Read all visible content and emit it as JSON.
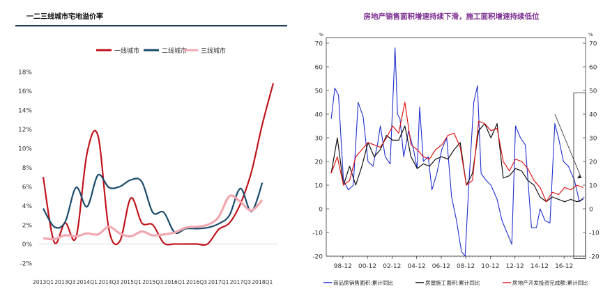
{
  "left_title": "一二三线城市宅地溢价率",
  "right_title": "房地产销售面积增速持续下滑，施工面积增速持续低位",
  "right_percent_left": "%",
  "right_percent_right": "%",
  "colors": {
    "tier1": "#c0141c",
    "tier2": "#1b4b6b",
    "tier3": "#f0a8b0",
    "sales": "#1f2fd0",
    "construction": "#111111",
    "investment": "#e01818",
    "left_rule": "#1f3a5a",
    "right_title": "#7a2d8e"
  },
  "chart_data": [
    {
      "type": "line",
      "title": "一二三线城市宅地溢价率",
      "legend_position": "top-center",
      "x": [
        "2013Q1",
        "2013Q2",
        "2013Q3",
        "2013Q4",
        "2014Q1",
        "2014Q2",
        "2014Q3",
        "2014Q4",
        "2015Q1",
        "2015Q2",
        "2015Q3",
        "2015Q4",
        "2016Q1",
        "2016Q2",
        "2016Q3",
        "2016Q4",
        "2017Q1",
        "2017Q2",
        "2017Q3",
        "2017Q4",
        "2018Q1",
        "2018Q2"
      ],
      "x_tick_labels": [
        "2013Q1",
        "2013Q3",
        "2014Q1",
        "2014Q3",
        "2015Q1",
        "2015Q3",
        "2016Q1",
        "2016Q3",
        "2017Q1",
        "2017Q3",
        "2018Q1"
      ],
      "ylim": [
        -2,
        18
      ],
      "y_ticks": [
        "-2%",
        "0%",
        "2%",
        "4%",
        "6%",
        "8%",
        "10%",
        "12%",
        "14%",
        "16%",
        "18%"
      ],
      "grid": false,
      "series": [
        {
          "name": "一线城市",
          "values": [
            7.0,
            0.2,
            2.2,
            0.7,
            9.5,
            11.3,
            1.5,
            0.3,
            4.8,
            2.2,
            2.0,
            0.1,
            0.0,
            0.0,
            0.0,
            0.0,
            1.5,
            2.2,
            4.2,
            7.5,
            12.5,
            16.8
          ]
        },
        {
          "name": "二线城市",
          "values": [
            3.7,
            1.8,
            2.3,
            5.9,
            3.9,
            7.2,
            5.9,
            6.0,
            6.7,
            6.5,
            3.3,
            3.3,
            1.2,
            1.6,
            1.6,
            1.7,
            2.1,
            3.0,
            5.8,
            3.4,
            6.4,
            null
          ]
        },
        {
          "name": "三线城市",
          "values": [
            0.6,
            0.5,
            0.9,
            0.8,
            1.1,
            1.0,
            1.8,
            1.1,
            0.8,
            1.3,
            0.9,
            1.0,
            1.2,
            1.7,
            1.8,
            2.0,
            2.8,
            5.0,
            4.4,
            3.5,
            4.6,
            null
          ]
        }
      ]
    },
    {
      "type": "line",
      "title": "房地产销售面积增速持续下滑，施工面积增速持续低位",
      "legend_position": "bottom",
      "x_tick_labels": [
        "98-12",
        "00-12",
        "02-12",
        "04-12",
        "06-12",
        "08-12",
        "10-12",
        "12-12",
        "14-12",
        "16-12"
      ],
      "ylim": [
        -20,
        70
      ],
      "y_ticks": [
        -20,
        -10,
        0,
        10,
        20,
        30,
        40,
        50,
        60,
        70
      ],
      "grid": false,
      "series": [
        {
          "name": "商品房销售面积:累计同比",
          "x": [
            1998.0,
            1998.3,
            1998.6,
            1999.0,
            1999.4,
            1999.8,
            2000.2,
            2000.6,
            2001.0,
            2001.4,
            2001.8,
            2002.0,
            2002.4,
            2002.8,
            2003.2,
            2003.4,
            2003.6,
            2003.9,
            2004.3,
            2004.7,
            2005.0,
            2005.2,
            2005.5,
            2005.9,
            2006.2,
            2006.6,
            2007.0,
            2007.4,
            2007.8,
            2008.2,
            2008.6,
            2008.9,
            2009.2,
            2009.6,
            2009.9,
            2010.2,
            2010.6,
            2011.0,
            2011.5,
            2011.9,
            2012.3,
            2012.7,
            2013.0,
            2013.4,
            2013.8,
            2014.3,
            2014.7,
            2015.0,
            2015.4,
            2015.8,
            2016.2,
            2016.5,
            2016.9,
            2017.3,
            2017.8,
            2018.2,
            2018.6
          ],
          "values": [
            38,
            51,
            48,
            12,
            8,
            10,
            45,
            39,
            20,
            18,
            28,
            35,
            22,
            19,
            68,
            40,
            38,
            22,
            33,
            25,
            17,
            43,
            20,
            22,
            8,
            15,
            25,
            30,
            5,
            -5,
            -18,
            -20,
            10,
            45,
            52,
            15,
            12,
            10,
            4,
            -5,
            -10,
            -15,
            35,
            30,
            27,
            -8,
            -8,
            0,
            -5,
            -6,
            36,
            30,
            20,
            18,
            12,
            3,
            5
          ]
        },
        {
          "name": "房屋施工面积:累计同比",
          "x": [
            1998.0,
            1998.5,
            1999.0,
            1999.5,
            2000.0,
            2000.5,
            2001.0,
            2001.5,
            2002.0,
            2002.5,
            2003.0,
            2003.5,
            2004.0,
            2004.5,
            2005.0,
            2005.5,
            2006.0,
            2006.5,
            2007.0,
            2007.5,
            2008.0,
            2008.5,
            2009.0,
            2009.5,
            2010.0,
            2010.5,
            2011.0,
            2011.5,
            2012.0,
            2012.5,
            2013.0,
            2013.5,
            2014.0,
            2014.5,
            2015.0,
            2015.5,
            2016.0,
            2016.5,
            2017.0,
            2017.5,
            2018.0,
            2018.5
          ],
          "values": [
            15,
            30,
            10,
            18,
            10,
            18,
            28,
            22,
            25,
            31,
            29,
            29,
            35,
            22,
            17,
            19,
            18,
            21,
            22,
            21,
            25,
            28,
            10,
            15,
            33,
            36,
            30,
            36,
            13,
            14,
            17,
            16,
            12,
            10,
            5,
            3,
            5,
            4,
            3,
            4,
            3,
            4
          ]
        },
        {
          "name": "房地产开发投资完成额:累计同比",
          "x": [
            1998.0,
            1998.5,
            1999.0,
            1999.5,
            2000.0,
            2000.5,
            2001.0,
            2001.5,
            2002.0,
            2002.5,
            2003.0,
            2003.5,
            2004.0,
            2004.5,
            2005.0,
            2005.5,
            2006.0,
            2006.5,
            2007.0,
            2007.5,
            2008.0,
            2008.5,
            2009.0,
            2009.5,
            2010.0,
            2010.5,
            2011.0,
            2011.5,
            2012.0,
            2012.5,
            2013.0,
            2013.5,
            2014.0,
            2014.5,
            2015.0,
            2015.5,
            2016.0,
            2016.5,
            2017.0,
            2017.5,
            2018.0,
            2018.5
          ],
          "values": [
            15,
            22,
            10,
            12,
            22,
            25,
            28,
            27,
            26,
            30,
            35,
            32,
            45,
            27,
            25,
            22,
            21,
            25,
            27,
            31,
            32,
            26,
            10,
            12,
            37,
            36,
            33,
            34,
            20,
            16,
            21,
            20,
            17,
            12,
            9,
            3,
            7,
            6,
            9,
            8,
            10,
            9
          ]
        }
      ]
    }
  ]
}
